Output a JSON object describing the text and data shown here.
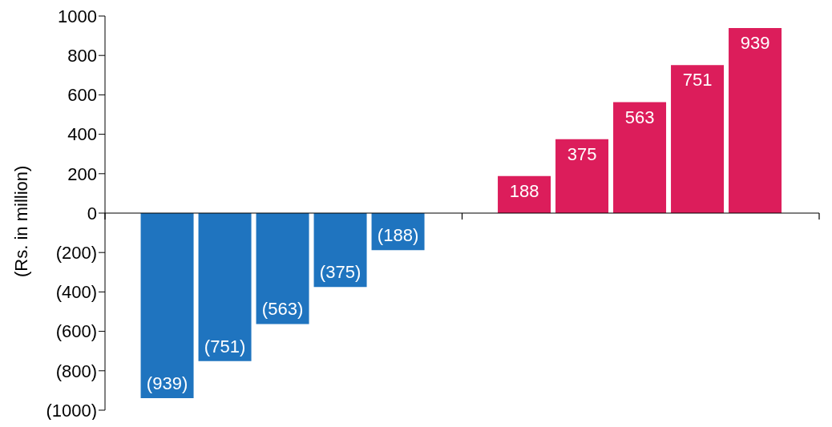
{
  "chart_data": {
    "type": "bar",
    "ylabel": "(Rs. in million)",
    "categories": [
      null,
      null
    ],
    "series": [
      {
        "colors": [
          "#1f74bf",
          "#dc1d5b"
        ],
        "values": [
          -939,
          188
        ],
        "value_labels": [
          "(939)",
          "188"
        ]
      },
      {
        "colors": [
          "#1f74bf",
          "#dc1d5b"
        ],
        "values": [
          -751,
          375
        ],
        "value_labels": [
          "(751)",
          "375"
        ]
      },
      {
        "colors": [
          "#1f74bf",
          "#dc1d5b"
        ],
        "values": [
          -563,
          563
        ],
        "value_labels": [
          "(563)",
          "563"
        ]
      },
      {
        "colors": [
          "#1f74bf",
          "#dc1d5b"
        ],
        "values": [
          -375,
          751
        ],
        "value_labels": [
          "(375)",
          "751"
        ]
      },
      {
        "colors": [
          "#1f74bf",
          "#dc1d5b"
        ],
        "values": [
          -188,
          939
        ],
        "value_labels": [
          "(188)",
          "939"
        ]
      }
    ],
    "ylim": [
      -1000,
      1000
    ],
    "yticks": [
      {
        "value": -1000,
        "label": "(1000)"
      },
      {
        "value": -800,
        "label": "(800)"
      },
      {
        "value": -600,
        "label": "(600)"
      },
      {
        "value": -400,
        "label": "(400)"
      },
      {
        "value": -200,
        "label": "(200)"
      },
      0,
      200,
      400,
      600,
      800,
      1000
    ],
    "ref_lines": [
      {
        "axis": "y",
        "value": 0,
        "color": "#000000"
      }
    ],
    "grid": false,
    "legend": false
  }
}
